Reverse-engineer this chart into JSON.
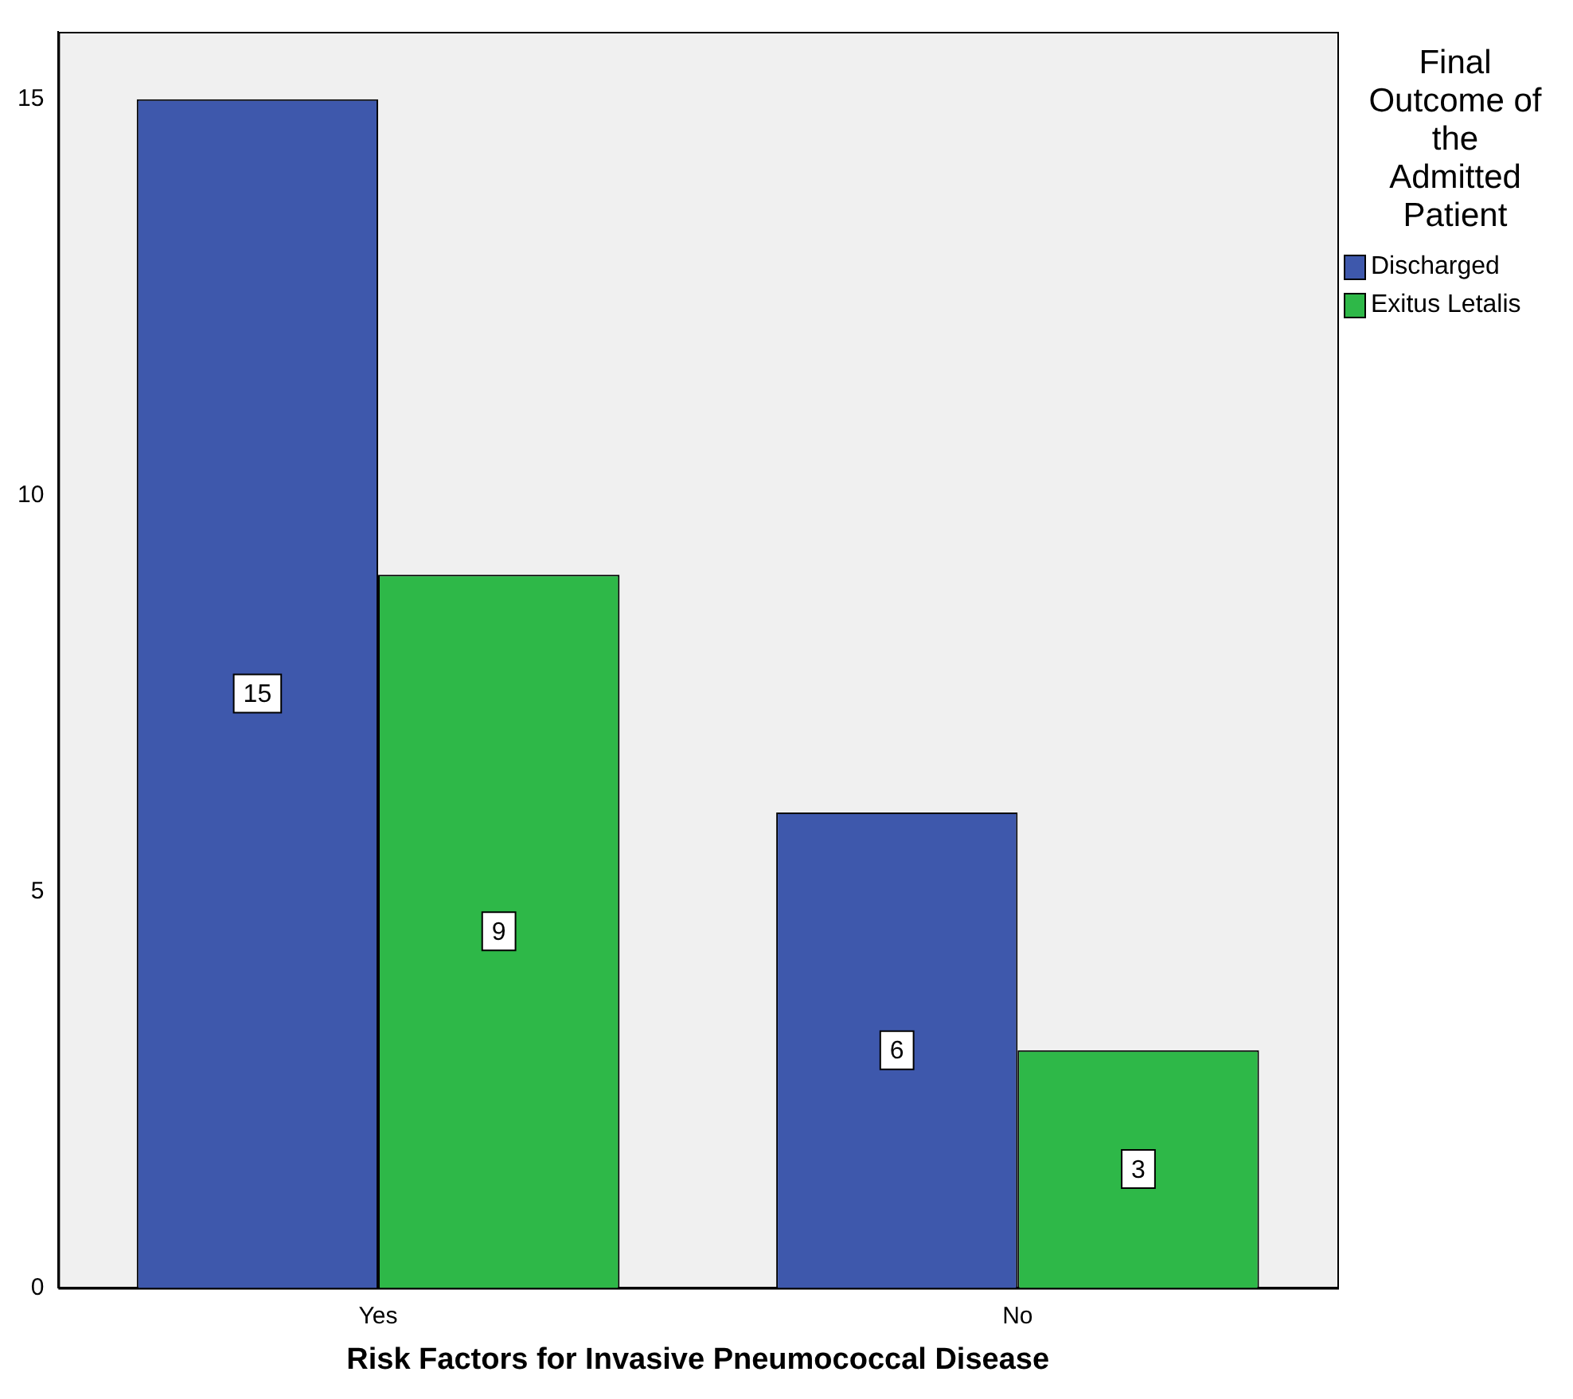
{
  "chart_data": {
    "type": "bar",
    "xlabel": "Risk Factors for Invasive Pneumococcal Disease",
    "legend_title": "Final Outcome of the Admitted Patient",
    "categories": [
      "Yes",
      "No"
    ],
    "series": [
      {
        "name": "Discharged",
        "color": "#3e58ac",
        "values": [
          15,
          6
        ]
      },
      {
        "name": "Exitus Letalis",
        "color": "#2eb848",
        "values": [
          9,
          3
        ]
      }
    ],
    "ylim": [
      0,
      15.85
    ],
    "yticks": [
      0,
      5,
      10,
      15
    ],
    "grid": false,
    "legend": "right",
    "data_labels": true
  }
}
